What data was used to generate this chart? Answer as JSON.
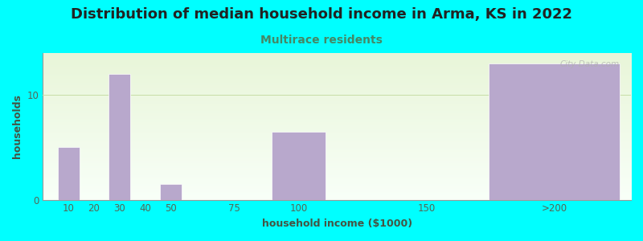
{
  "title": "Distribution of median household income in Arma, KS in 2022",
  "subtitle": "Multirace residents",
  "xlabel": "household income ($1000)",
  "ylabel": "households",
  "background_color": "#00FFFF",
  "plot_bg_top": "#e8f5d8",
  "plot_bg_bottom": "#f8fff8",
  "bar_color": "#b8a8cc",
  "title_color": "#222222",
  "subtitle_color": "#448866",
  "axis_label_color": "#445544",
  "tick_label_color": "#556655",
  "grid_color": "#c8dda8",
  "watermark": "City-Data.com",
  "xtick_positions": [
    10,
    20,
    30,
    40,
    50,
    75,
    100,
    150,
    200
  ],
  "xtick_labels": [
    "10",
    "20",
    "30",
    "40",
    "50",
    "75",
    "100",
    "150",
    ">200"
  ],
  "bar_centers": [
    10,
    30,
    50,
    100,
    200
  ],
  "bar_widths": [
    10,
    10,
    10,
    25,
    60
  ],
  "bar_values": [
    5,
    12,
    1.5,
    6.5,
    13
  ],
  "ylim": [
    0,
    14
  ],
  "yticks": [
    0,
    10
  ],
  "xlim": [
    0,
    230
  ],
  "title_fontsize": 13,
  "subtitle_fontsize": 10,
  "axis_label_fontsize": 9,
  "tick_fontsize": 8.5
}
